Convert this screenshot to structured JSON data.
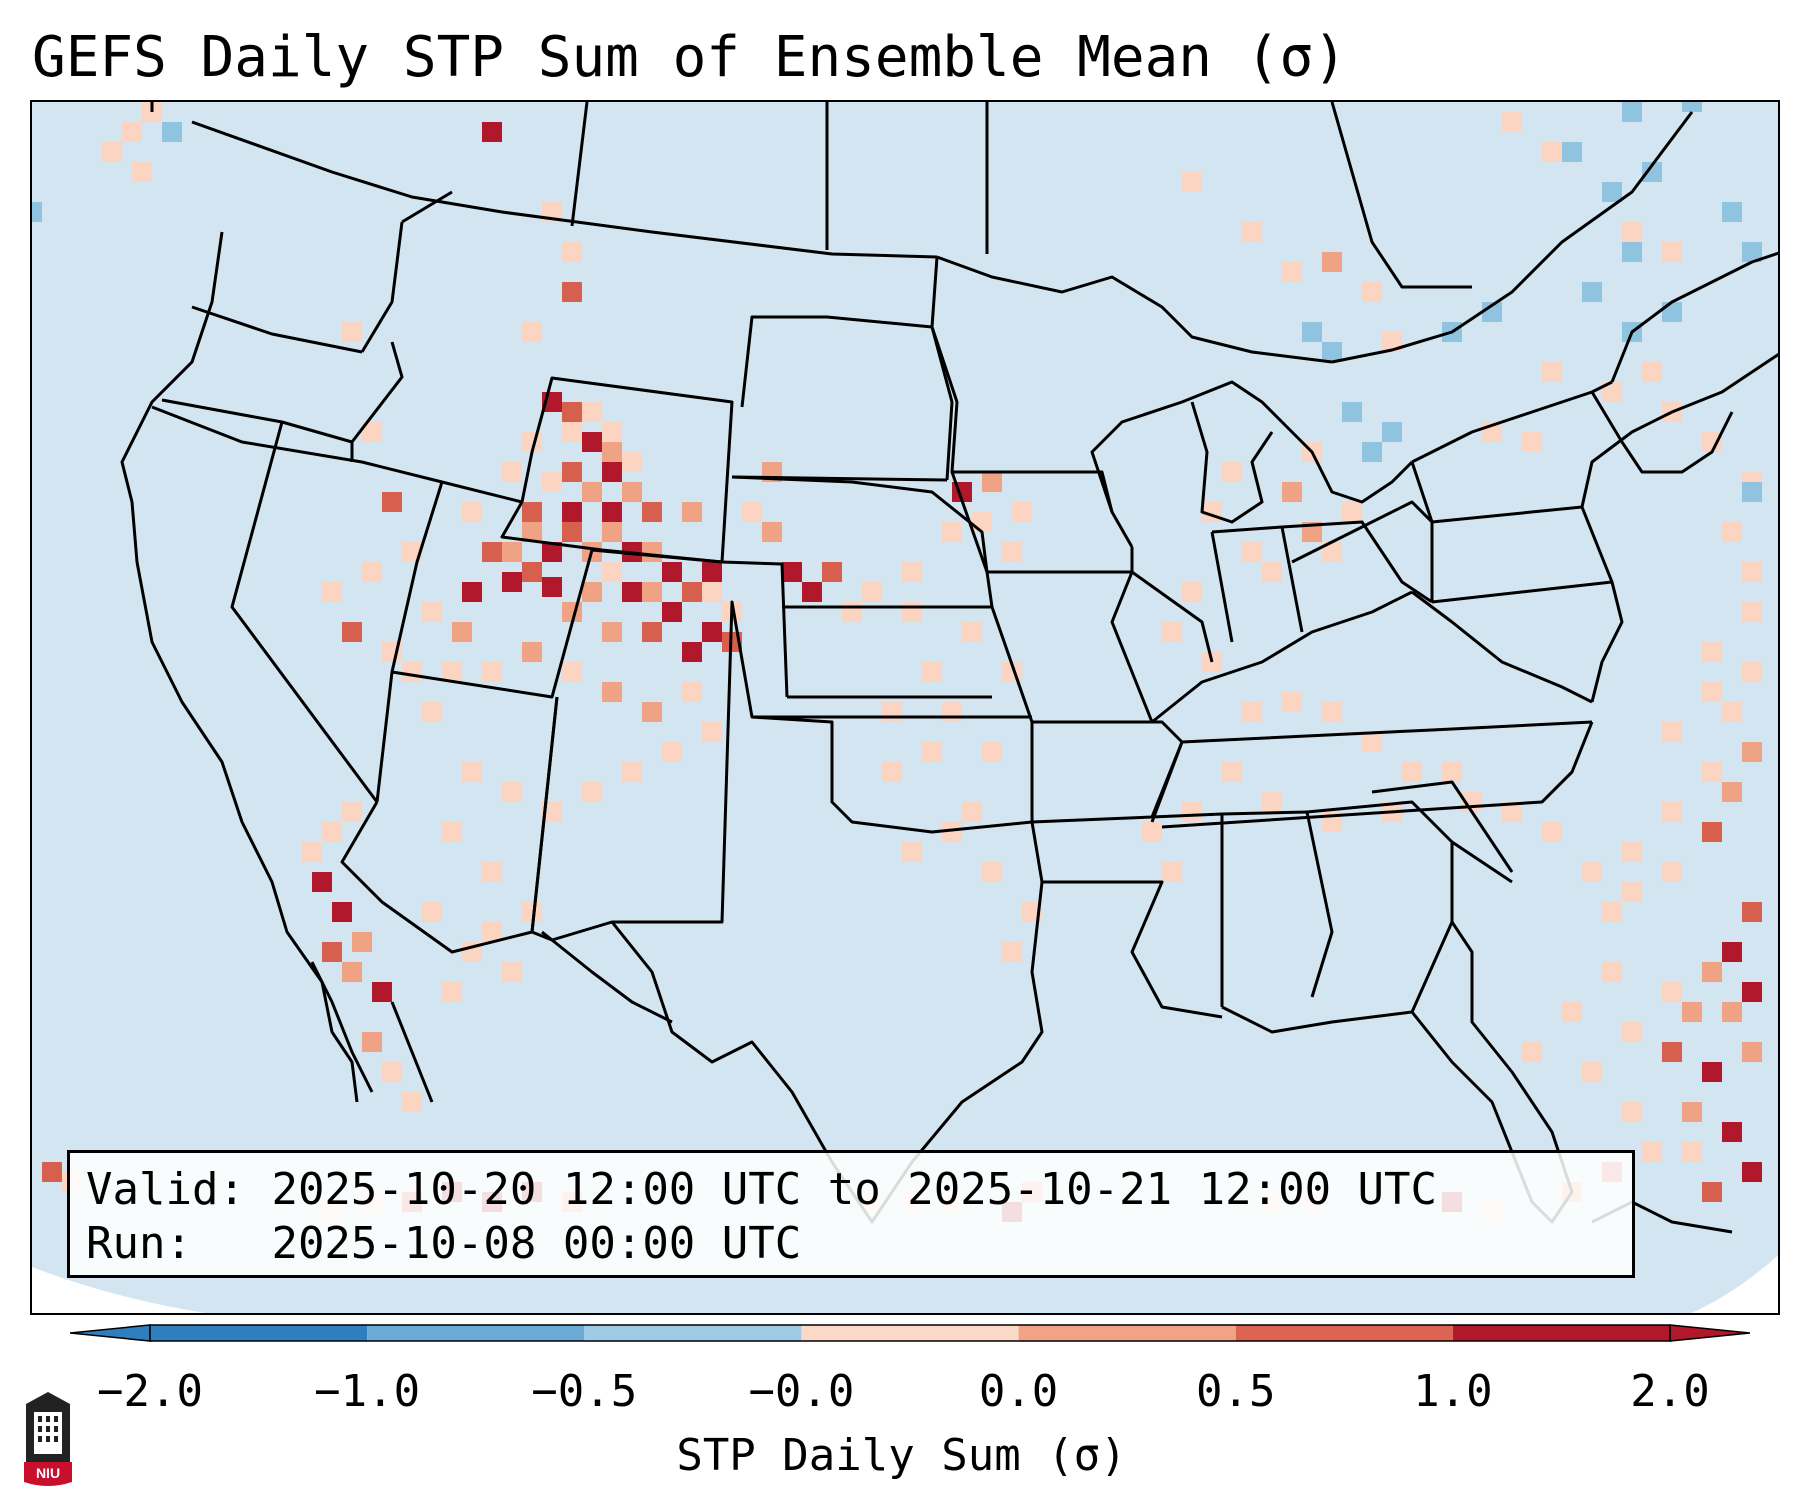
{
  "title": "GEFS Daily STP Sum of Ensemble Mean (σ)",
  "info": {
    "valid_label": "Valid:",
    "valid_value": "2025-10-20 12:00 UTC to 2025-10-21 12:00 UTC",
    "run_label": "Run:",
    "run_value": "2025-10-08 00:00 UTC"
  },
  "colorbar": {
    "label": "STP Daily Sum (σ)",
    "ticks": [
      "−2.0",
      "−1.0",
      "−0.5",
      "−0.0",
      "0.0",
      "0.5",
      "1.0",
      "2.0"
    ],
    "colors": [
      "#2f7fbf",
      "#6aaad6",
      "#9fcae6",
      "#d4e6f1",
      "#fbd9c6",
      "#f2a386",
      "#dc6450",
      "#b2182b"
    ],
    "extend": "both"
  },
  "logo_text": "NIU",
  "colors": {
    "map_background": "#d3e5f0",
    "light_red": "#fbd5c2",
    "medium_red": "#f0a285",
    "dark_red": "#d6604d",
    "deep_red": "#b2182b",
    "light_blue": "#8fc3e0",
    "niu_red": "#c8102e"
  }
}
